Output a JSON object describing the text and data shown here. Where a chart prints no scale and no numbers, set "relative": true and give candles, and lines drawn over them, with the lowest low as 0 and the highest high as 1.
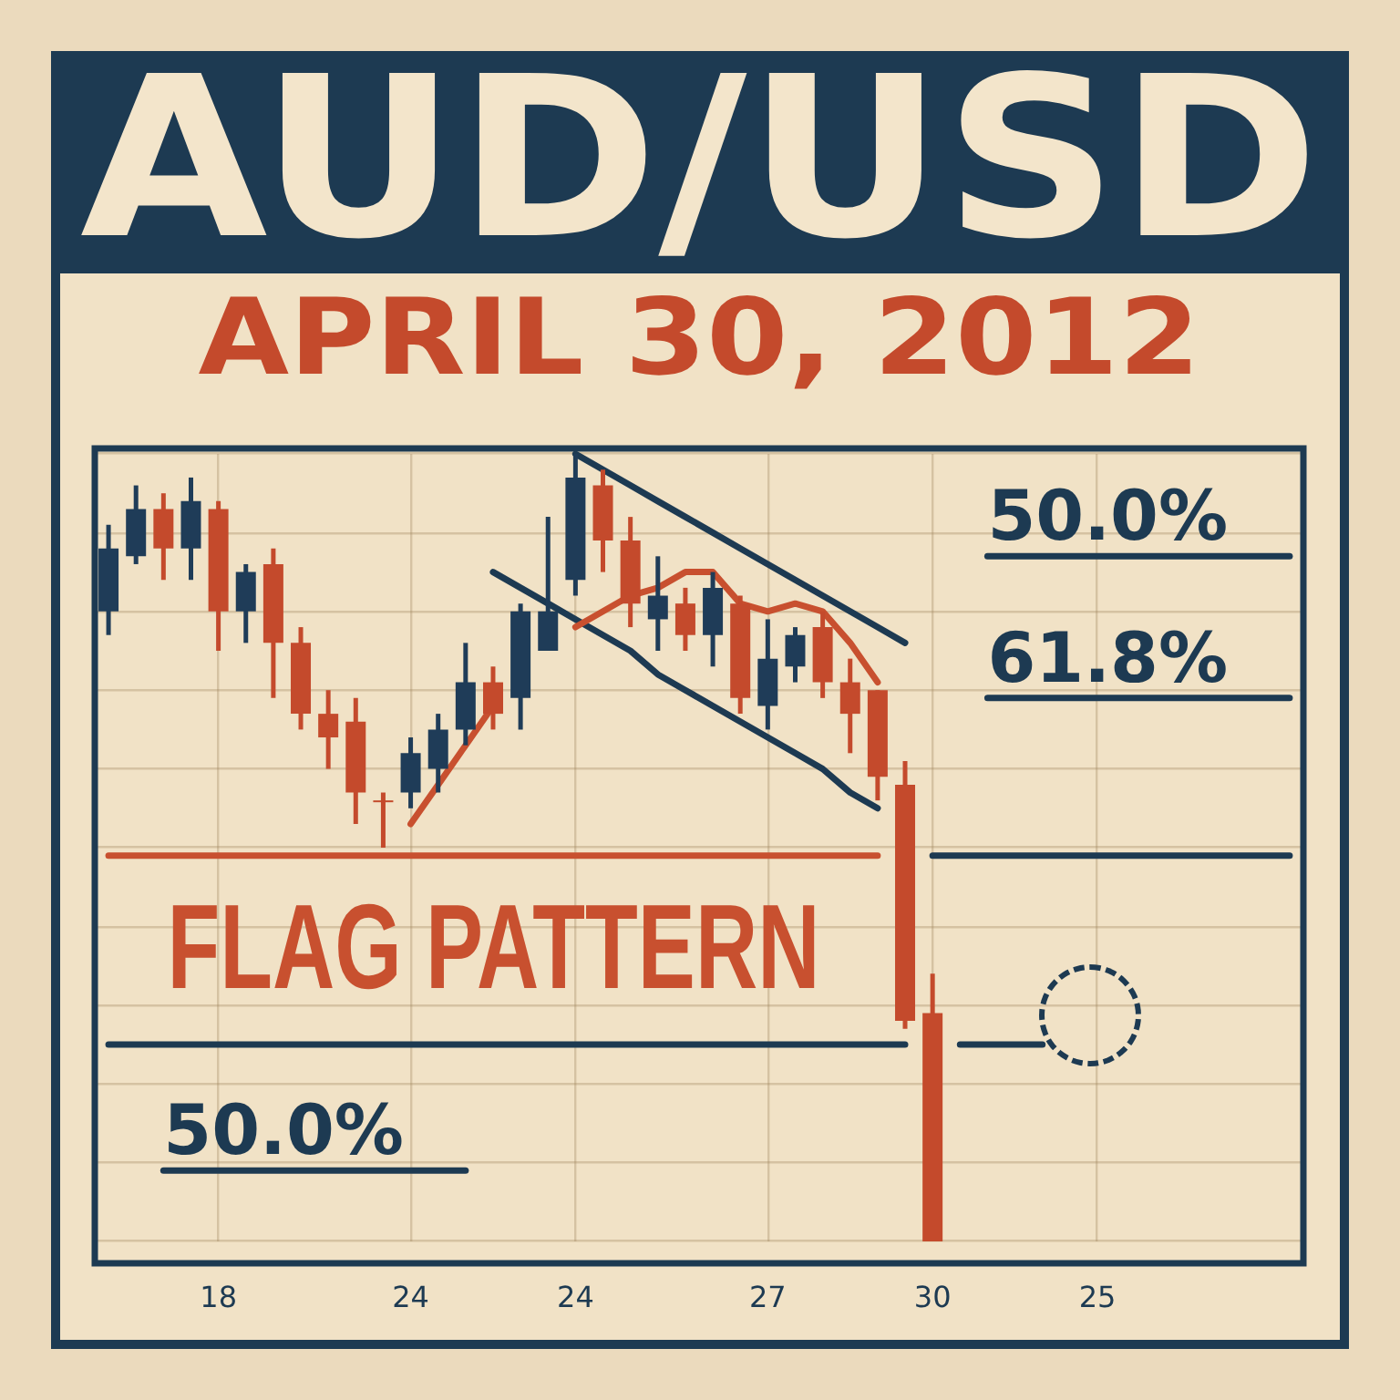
{
  "chart_data": {
    "type": "candlestick",
    "title": "AUD/USD",
    "subtitle": "APRIL 30, 2012",
    "relative": true,
    "grid": true,
    "legend": false,
    "marker": "none",
    "line_style": "solid",
    "categories": [
      null,
      null,
      null,
      null,
      "18",
      null,
      null,
      null,
      null,
      null,
      null,
      "24",
      null,
      null,
      null,
      null,
      null,
      "24",
      null,
      null,
      null,
      null,
      null,
      null,
      "27",
      null,
      null,
      null,
      null,
      null,
      "30",
      null,
      null,
      null,
      null,
      null,
      "25",
      null,
      null,
      null,
      null,
      null,
      null,
      null
    ],
    "ohlc": [
      [
        0.8,
        0.91,
        0.77,
        0.88
      ],
      [
        0.87,
        0.96,
        0.86,
        0.93
      ],
      [
        0.93,
        0.95,
        0.84,
        0.88
      ],
      [
        0.88,
        0.97,
        0.84,
        0.94
      ],
      [
        0.93,
        0.94,
        0.75,
        0.8
      ],
      [
        0.8,
        0.86,
        0.76,
        0.85
      ],
      [
        0.86,
        0.88,
        0.69,
        0.76
      ],
      [
        0.76,
        0.78,
        0.65,
        0.67
      ],
      [
        0.67,
        0.7,
        0.6,
        0.64
      ],
      [
        0.66,
        0.69,
        0.53,
        0.57
      ],
      [
        0.56,
        0.57,
        0.5,
        0.56
      ],
      [
        0.57,
        0.64,
        0.55,
        0.62
      ],
      [
        0.6,
        0.67,
        0.57,
        0.65
      ],
      [
        0.65,
        0.76,
        0.63,
        0.71
      ],
      [
        0.71,
        0.73,
        0.65,
        0.67
      ],
      [
        0.69,
        0.81,
        0.65,
        0.8
      ],
      [
        0.75,
        0.92,
        0.75,
        0.8
      ],
      [
        0.84,
        1.0,
        0.82,
        0.97
      ],
      [
        0.96,
        0.98,
        0.85,
        0.89
      ],
      [
        0.89,
        0.92,
        0.78,
        0.81
      ],
      [
        0.79,
        0.87,
        0.75,
        0.82
      ],
      [
        0.81,
        0.83,
        0.75,
        0.77
      ],
      [
        0.77,
        0.85,
        0.73,
        0.83
      ],
      [
        0.81,
        0.82,
        0.67,
        0.69
      ],
      [
        0.68,
        0.79,
        0.65,
        0.74
      ],
      [
        0.73,
        0.78,
        0.71,
        0.77
      ],
      [
        0.78,
        0.8,
        0.69,
        0.71
      ],
      [
        0.71,
        0.74,
        0.62,
        0.67
      ],
      [
        0.7,
        0.7,
        0.56,
        0.59
      ],
      [
        0.58,
        0.61,
        0.27,
        0.28
      ],
      [
        0.29,
        0.34,
        0,
        0
      ],
      null,
      null,
      null,
      null,
      null,
      null,
      null,
      null,
      null,
      null,
      null,
      null,
      null
    ],
    "colors": [
      "#1f3c58",
      "#1f3c58",
      "#c44a2c",
      "#1f3c58",
      "#c44a2c",
      "#1f3c58",
      "#c44a2c",
      "#c44a2c",
      "#c44a2c",
      "#c44a2c",
      "#c44a2c",
      "#1f3c58",
      "#1f3c58",
      "#1f3c58",
      "#c44a2c",
      "#1f3c58",
      "#1f3c58",
      "#1f3c58",
      "#c44a2c",
      "#c44a2c",
      "#1f3c58",
      "#c44a2c",
      "#1f3c58",
      "#c44a2c",
      "#1f3c58",
      "#1f3c58",
      "#c44a2c",
      "#c44a2c",
      "#c44a2c",
      "#c44a2c",
      "#c44a2c",
      null,
      null,
      null,
      null,
      null,
      null,
      null,
      null,
      null,
      null,
      null,
      null,
      null
    ],
    "series": [
      {
        "type": "line",
        "color": "#c8502f",
        "values": [
          null,
          null,
          null,
          null,
          null,
          null,
          null,
          null,
          null,
          null,
          null,
          0.53,
          0.58,
          0.63,
          0.68,
          null,
          null,
          0.78,
          0.8,
          0.82,
          0.83,
          0.85,
          0.85,
          0.81,
          0.8,
          0.81,
          0.8,
          0.76,
          0.71,
          null,
          null,
          null,
          null,
          null,
          null,
          null,
          null,
          null,
          null,
          null,
          null,
          null,
          null,
          null
        ]
      },
      {
        "type": "line",
        "color": "#1d3a52",
        "values": [
          null,
          null,
          null,
          null,
          null,
          null,
          null,
          null,
          null,
          null,
          null,
          null,
          null,
          null,
          null,
          null,
          null,
          1.0,
          0.98,
          0.96,
          0.94,
          0.92,
          0.9,
          0.88,
          0.86,
          0.84,
          0.82,
          0.8,
          0.78,
          0.76,
          null,
          null,
          null,
          null,
          null,
          null,
          null,
          null,
          null,
          null,
          null,
          null,
          null,
          null
        ]
      },
      {
        "type": "line",
        "color": "#1d3a52",
        "values": [
          null,
          null,
          null,
          null,
          null,
          null,
          null,
          null,
          null,
          null,
          null,
          null,
          null,
          null,
          0.85,
          0.83,
          0.81,
          0.79,
          0.77,
          0.75,
          0.72,
          0.7,
          0.68,
          0.66,
          0.64,
          0.62,
          0.6,
          0.57,
          0.55,
          null,
          null,
          null,
          null,
          null,
          null,
          null,
          null,
          null,
          null,
          null,
          null,
          null,
          null,
          null
        ]
      },
      {
        "type": "line",
        "name": "50.0%",
        "color": "#1d3a52",
        "values": [
          null,
          null,
          null,
          null,
          null,
          null,
          null,
          null,
          null,
          null,
          null,
          null,
          null,
          null,
          null,
          null,
          null,
          null,
          null,
          null,
          null,
          null,
          null,
          null,
          null,
          null,
          null,
          null,
          null,
          null,
          null,
          null,
          0.87,
          0.87,
          0.87,
          0.87,
          0.87,
          0.87,
          0.87,
          0.87,
          0.87,
          0.87,
          0.87,
          0.87
        ]
      },
      {
        "type": "line",
        "name": "61.8%",
        "color": "#1d3a52",
        "values": [
          null,
          null,
          null,
          null,
          null,
          null,
          null,
          null,
          null,
          null,
          null,
          null,
          null,
          null,
          null,
          null,
          null,
          null,
          null,
          null,
          null,
          null,
          null,
          null,
          null,
          null,
          null,
          null,
          null,
          null,
          null,
          null,
          0.69,
          0.69,
          0.69,
          0.69,
          0.69,
          0.69,
          0.69,
          0.69,
          0.69,
          0.69,
          0.69,
          0.69
        ]
      },
      {
        "type": "line",
        "color": "#c8502f",
        "values": [
          0.49,
          0.49,
          0.49,
          0.49,
          0.49,
          0.49,
          0.49,
          0.49,
          0.49,
          0.49,
          0.49,
          0.49,
          0.49,
          0.49,
          0.49,
          0.49,
          0.49,
          0.49,
          0.49,
          0.49,
          0.49,
          0.49,
          0.49,
          0.49,
          0.49,
          0.49,
          0.49,
          0.49,
          0.49,
          null,
          null,
          null,
          null,
          null,
          null,
          null,
          null,
          null,
          null,
          null,
          null,
          null,
          null,
          null
        ]
      },
      {
        "type": "line",
        "color": "#1d3a52",
        "values": [
          null,
          null,
          null,
          null,
          null,
          null,
          null,
          null,
          null,
          null,
          null,
          null,
          null,
          null,
          null,
          null,
          null,
          null,
          null,
          null,
          null,
          null,
          null,
          null,
          null,
          null,
          null,
          null,
          null,
          null,
          0.49,
          0.49,
          0.49,
          0.49,
          0.49,
          0.49,
          0.49,
          0.49,
          0.49,
          0.49,
          0.49,
          0.49,
          0.49,
          0.49
        ]
      },
      {
        "type": "line",
        "color": "#1d3a52",
        "values": [
          0.25,
          0.25,
          0.25,
          0.25,
          0.25,
          0.25,
          0.25,
          0.25,
          0.25,
          0.25,
          0.25,
          0.25,
          0.25,
          0.25,
          0.25,
          0.25,
          0.25,
          0.25,
          0.25,
          0.25,
          0.25,
          0.25,
          0.25,
          0.25,
          0.25,
          0.25,
          0.25,
          0.25,
          0.25,
          0.25,
          null,
          0.25,
          0.25,
          0.25,
          0.25,
          null,
          null,
          null,
          null,
          null,
          null,
          null,
          null,
          null
        ]
      },
      {
        "type": "line",
        "name": "50.0%",
        "color": "#1d3a52",
        "values": [
          null,
          null,
          0.09,
          0.09,
          0.09,
          0.09,
          0.09,
          0.09,
          0.09,
          0.09,
          0.09,
          0.09,
          0.09,
          0.09,
          null,
          null,
          null,
          null,
          null,
          null,
          null,
          null,
          null,
          null,
          null,
          null,
          null,
          null,
          null,
          null,
          null,
          null,
          null,
          null,
          null,
          null,
          null,
          null,
          null,
          null,
          null,
          null,
          null,
          null
        ]
      }
    ],
    "annotations": [
      "FLAG PATTERN"
    ]
  }
}
